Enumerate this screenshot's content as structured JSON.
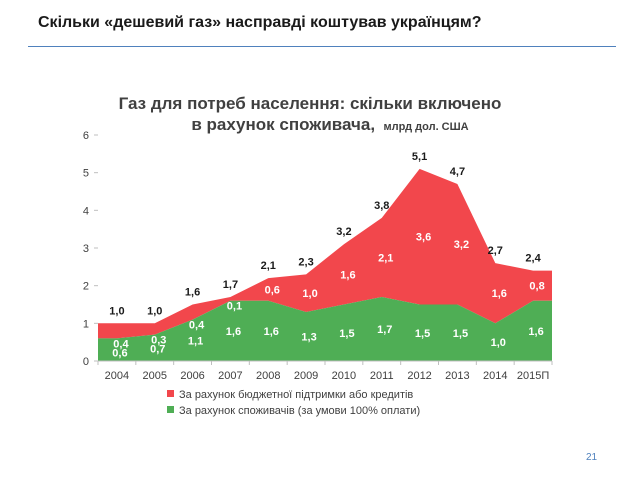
{
  "slide": {
    "title": "Скільки «дешевий газ» насправді коштував українцям?",
    "page_number": "21"
  },
  "colors": {
    "budget": "#f2474c",
    "consumer": "#4fae55",
    "rule": "#4f81bd"
  },
  "chart_data": {
    "type": "area",
    "stacked": true,
    "title_line1": "Газ для потреб населення: скільки включено",
    "title_line2_bold": "в рахунок споживача,",
    "title_line2_unit": "млрд дол. США",
    "categories": [
      "2004",
      "2005",
      "2006",
      "2007",
      "2008",
      "2009",
      "2010",
      "2011",
      "2012",
      "2013",
      "2014",
      "2015П"
    ],
    "ylim": [
      0,
      6
    ],
    "yticks": [
      "0",
      "1",
      "2",
      "3",
      "4",
      "5",
      "6"
    ],
    "series": [
      {
        "name": "За рахунок споживачів (за умови 100% оплати)",
        "values": [
          0.6,
          0.7,
          1.1,
          1.6,
          1.6,
          1.3,
          1.5,
          1.7,
          1.5,
          1.5,
          1.0,
          1.6
        ],
        "labels": [
          "0,6",
          "0,7",
          "1,1",
          "1,6",
          "1,6",
          "1,3",
          "1,5",
          "1,7",
          "1,5",
          "1,5",
          "1,0",
          "1,6"
        ]
      },
      {
        "name": "За рахунок бюджетної підтримки або кредитів",
        "values": [
          0.4,
          0.3,
          0.4,
          0.1,
          0.6,
          1.0,
          1.6,
          2.1,
          3.6,
          3.2,
          1.6,
          0.8
        ],
        "labels": [
          "0,4",
          "0,3",
          "0,4",
          "0,1",
          "0,6",
          "1,0",
          "1,6",
          "2,1",
          "3,6",
          "3,2",
          "1,6",
          "0,8"
        ]
      }
    ],
    "totals": [
      1.0,
      1.0,
      1.6,
      1.7,
      2.1,
      2.3,
      3.2,
      3.8,
      5.1,
      4.7,
      2.7,
      2.4
    ],
    "total_labels": [
      "1,0",
      "1,0",
      "1,6",
      "1,7",
      "2,1",
      "2,3",
      "3,2",
      "3,8",
      "5,1",
      "4,7",
      "2,7",
      "2,4"
    ],
    "legend": [
      "За рахунок бюджетної підтримки або кредитів",
      "За рахунок споживачів (за умови 100% оплати)"
    ]
  }
}
